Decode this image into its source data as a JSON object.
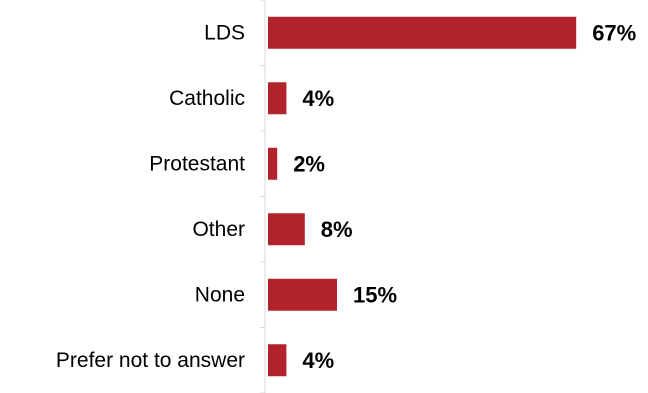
{
  "chart_data": {
    "type": "bar",
    "orientation": "horizontal",
    "categories": [
      "LDS",
      "Catholic",
      "Protestant",
      "Other",
      "None",
      "Prefer not to answer"
    ],
    "values": [
      67,
      4,
      2,
      8,
      15,
      4
    ],
    "value_labels": [
      "67%",
      "4%",
      "2%",
      "8%",
      "15%",
      "4%"
    ],
    "unit": "%",
    "bar_color": "#b2222a",
    "axis_color": "#d9d9d9",
    "grid": false,
    "legend": "none"
  }
}
